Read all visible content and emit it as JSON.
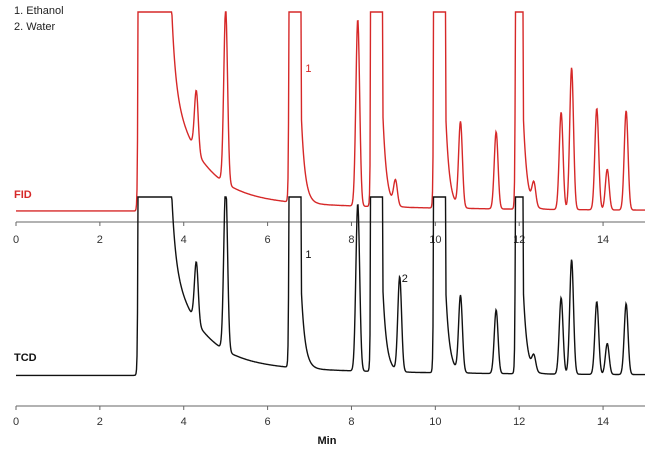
{
  "chart_data": [
    {
      "type": "line",
      "title": "",
      "series": [
        {
          "name": "FID",
          "color": "#d62828"
        }
      ],
      "xlabel": "",
      "ylabel": "",
      "xlim": [
        0,
        15
      ],
      "x_ticks": [
        "0",
        "2",
        "4",
        "6",
        "8",
        "10",
        "12",
        "14"
      ],
      "annotations": [
        {
          "text": "1",
          "x": 6.9
        }
      ],
      "baseline": 0.02,
      "peaks": [
        {
          "x": 3.3,
          "height": 1.0,
          "flat_top": true,
          "start": 2.9,
          "end": 3.7
        },
        {
          "x": 4.3,
          "height": 0.3
        },
        {
          "x": 5.0,
          "height": 0.86
        },
        {
          "x": 6.65,
          "height": 1.0,
          "flat_top": true,
          "start": 6.5,
          "end": 6.8
        },
        {
          "x": 8.15,
          "height": 0.92
        },
        {
          "x": 8.6,
          "height": 1.0,
          "flat_top": true,
          "start": 8.45,
          "end": 8.75
        },
        {
          "x": 9.05,
          "height": 0.12
        },
        {
          "x": 10.1,
          "height": 1.0,
          "flat_top": true,
          "start": 9.95,
          "end": 10.25
        },
        {
          "x": 10.6,
          "height": 0.42
        },
        {
          "x": 11.45,
          "height": 0.38
        },
        {
          "x": 12.0,
          "height": 1.0,
          "flat_top": true,
          "start": 11.9,
          "end": 12.1
        },
        {
          "x": 12.35,
          "height": 0.11
        },
        {
          "x": 13.0,
          "height": 0.48
        },
        {
          "x": 13.25,
          "height": 0.7
        },
        {
          "x": 13.85,
          "height": 0.5
        },
        {
          "x": 14.1,
          "height": 0.2
        },
        {
          "x": 14.55,
          "height": 0.49
        }
      ],
      "legend": [
        "1.  Ethanol",
        "2.  Water"
      ],
      "channel_label": "FID"
    },
    {
      "type": "line",
      "title": "",
      "series": [
        {
          "name": "TCD",
          "color": "#111111"
        }
      ],
      "xlabel": "Min",
      "ylabel": "",
      "xlim": [
        0,
        15
      ],
      "x_ticks": [
        "0",
        "2",
        "4",
        "6",
        "8",
        "10",
        "12",
        "14"
      ],
      "annotations": [
        {
          "text": "1",
          "x": 6.9
        },
        {
          "text": "2",
          "x": 9.2
        }
      ],
      "baseline": 0.02,
      "peaks": [
        {
          "x": 3.3,
          "height": 1.0,
          "flat_top": true,
          "start": 2.9,
          "end": 3.7
        },
        {
          "x": 4.3,
          "height": 0.33
        },
        {
          "x": 5.0,
          "height": 0.92
        },
        {
          "x": 6.65,
          "height": 1.0,
          "flat_top": true,
          "start": 6.5,
          "end": 6.8
        },
        {
          "x": 8.15,
          "height": 0.92
        },
        {
          "x": 8.6,
          "height": 1.0,
          "flat_top": true,
          "start": 8.45,
          "end": 8.75
        },
        {
          "x": 9.15,
          "height": 0.52
        },
        {
          "x": 10.1,
          "height": 1.0,
          "flat_top": true,
          "start": 9.95,
          "end": 10.25
        },
        {
          "x": 10.6,
          "height": 0.42
        },
        {
          "x": 11.45,
          "height": 0.35
        },
        {
          "x": 12.0,
          "height": 1.0,
          "flat_top": true,
          "start": 11.9,
          "end": 12.1
        },
        {
          "x": 12.35,
          "height": 0.08
        },
        {
          "x": 13.0,
          "height": 0.42
        },
        {
          "x": 13.25,
          "height": 0.63
        },
        {
          "x": 13.85,
          "height": 0.4
        },
        {
          "x": 14.1,
          "height": 0.17
        },
        {
          "x": 14.55,
          "height": 0.39
        }
      ],
      "channel_label": "TCD"
    }
  ]
}
